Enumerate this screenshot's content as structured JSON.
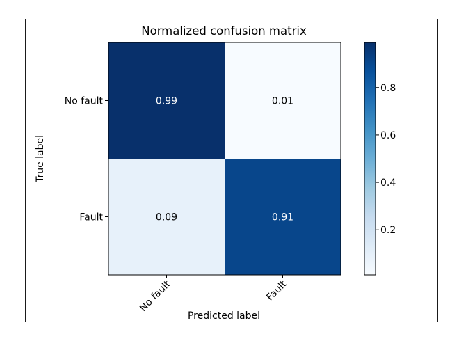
{
  "chart_data": {
    "type": "heatmap",
    "title": "Normalized confusion matrix",
    "xlabel": "Predicted label",
    "ylabel": "True label",
    "x_categories": [
      "No fault",
      "Fault"
    ],
    "y_categories": [
      "No fault",
      "Fault"
    ],
    "values": [
      [
        0.99,
        0.01
      ],
      [
        0.09,
        0.91
      ]
    ],
    "cell_labels": [
      [
        "0.99",
        "0.01"
      ],
      [
        "0.09",
        "0.91"
      ]
    ],
    "colormap": "Blues",
    "colorbar": {
      "range": [
        0.01,
        0.99
      ],
      "ticks": [
        0.2,
        0.4,
        0.6,
        0.8
      ],
      "tick_labels": [
        "0.2",
        "0.4",
        "0.6",
        "0.8"
      ]
    },
    "grid": false
  },
  "colors": {
    "low": "#f7fbff",
    "high": "#08306b",
    "text_light": "#ffffff",
    "text_dark": "#000000"
  }
}
